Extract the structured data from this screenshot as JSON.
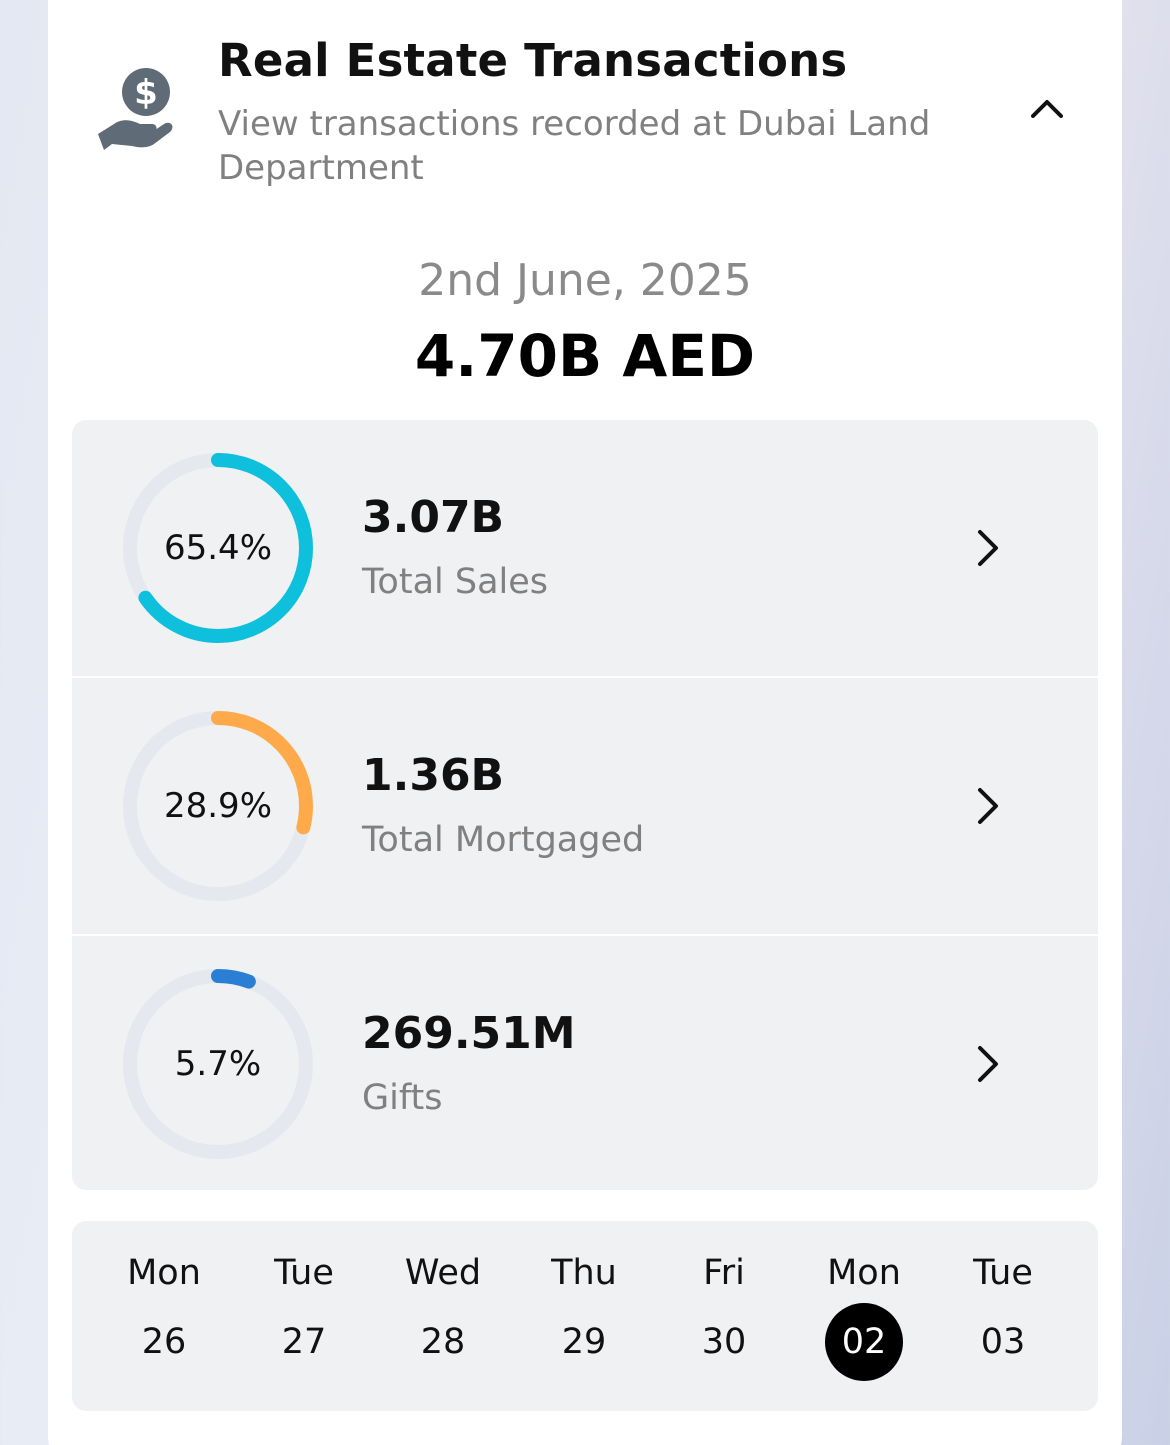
{
  "header": {
    "title": "Real Estate Transactions",
    "subtitle": "View transactions recorded at Dubai Land Department",
    "icon": "hand-money-icon",
    "collapse_icon": "chevron-up-icon"
  },
  "summary": {
    "date": "2nd June, 2025",
    "total": "4.70B AED"
  },
  "stats": [
    {
      "percent_label": "65.4%",
      "fraction": 0.654,
      "value": "3.07B",
      "label": "Total Sales",
      "color": "#0ec0dc"
    },
    {
      "percent_label": "28.9%",
      "fraction": 0.289,
      "value": "1.36B",
      "label": "Total Mortgaged",
      "color": "#ffaa4a"
    },
    {
      "percent_label": "5.7%",
      "fraction": 0.057,
      "value": "269.51M",
      "label": "Gifts",
      "color": "#2a7fd4"
    }
  ],
  "calendar": {
    "days": [
      {
        "name": "Mon",
        "num": "26"
      },
      {
        "name": "Tue",
        "num": "27"
      },
      {
        "name": "Wed",
        "num": "28"
      },
      {
        "name": "Thu",
        "num": "29"
      },
      {
        "name": "Fri",
        "num": "30"
      },
      {
        "name": "Mon",
        "num": "02"
      },
      {
        "name": "Tue",
        "num": "03"
      }
    ],
    "selected_index": 5
  },
  "colors": {
    "ring_track": "#e6e8ef",
    "icon_gray": "#5f6b76"
  }
}
